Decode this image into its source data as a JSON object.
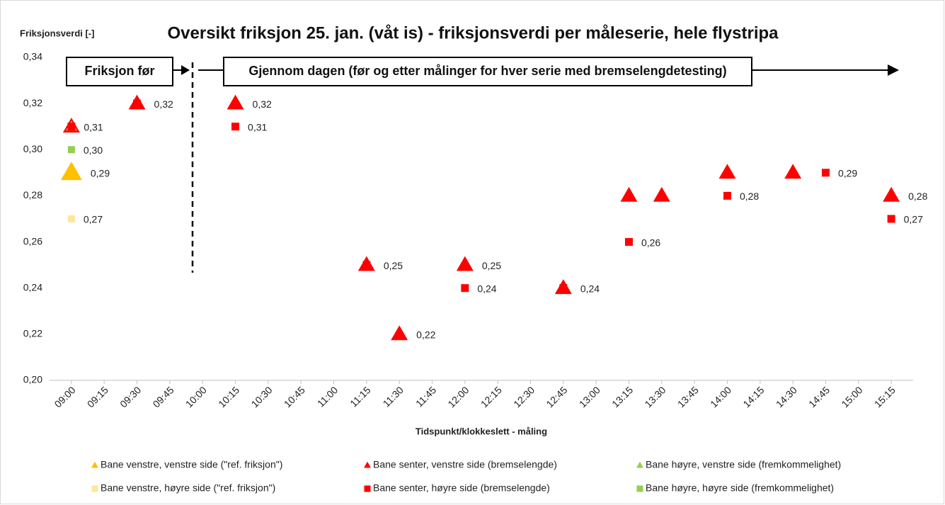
{
  "chart_data": {
    "type": "scatter",
    "title": "Oversikt friksjon 25. jan. (våt is) - friksjonsverdi per måleserie, hele flystripa",
    "y_label": "Friksjonsverdi [-]",
    "x_label": "Tidspunkt/klokkeslett - måling",
    "annotations": [
      "Friksjon før",
      "Gjennom dagen (før og etter målinger for hver serie med bremselengdetesting)"
    ],
    "xlim": [
      "08:50",
      "15:25"
    ],
    "xticks": [
      "09:00",
      "09:15",
      "09:30",
      "09:45",
      "10:00",
      "10:15",
      "10:30",
      "10:45",
      "11:00",
      "11:15",
      "11:30",
      "11:45",
      "12:00",
      "12:15",
      "12:30",
      "12:45",
      "13:00",
      "13:15",
      "13:30",
      "13:45",
      "14:00",
      "14:15",
      "14:30",
      "14:45",
      "15:00",
      "15:15"
    ],
    "ylim": [
      0.2,
      0.34
    ],
    "yticks": [
      {
        "value": 0.2,
        "label": "0,20"
      },
      {
        "value": 0.22,
        "label": "0,22"
      },
      {
        "value": 0.24,
        "label": "0,24"
      },
      {
        "value": 0.26,
        "label": "0,26"
      },
      {
        "value": 0.28,
        "label": "0,28"
      },
      {
        "value": 0.3,
        "label": "0,30"
      },
      {
        "value": 0.32,
        "label": "0,32"
      },
      {
        "value": 0.34,
        "label": "0,34"
      }
    ],
    "grid": false,
    "legend": "bottom",
    "series": [
      {
        "name": "Bane venstre, venstre side (\"ref. friksjon\")",
        "color": "#FFC000",
        "marker": "triangle",
        "size": 30,
        "x": [
          "09:00"
        ],
        "values": [
          0.29
        ],
        "value_labels": [
          "0,29"
        ]
      },
      {
        "name": "Bane senter, venstre side (bremselengde)",
        "color": "#FF0000",
        "marker": "triangle",
        "size": 24,
        "x": [
          "09:00",
          "09:30",
          "10:15",
          "11:15",
          "11:30",
          "12:00",
          "12:45",
          "13:15",
          "13:30",
          "14:00",
          "14:30",
          "15:15"
        ],
        "values": [
          0.31,
          0.32,
          0.32,
          0.25,
          0.22,
          0.25,
          0.24,
          0.28,
          0.28,
          0.29,
          0.29,
          0.28
        ],
        "value_labels": [
          null,
          "0,32",
          "0,32",
          "0,25",
          "0,22",
          "0,25",
          "0,24",
          null,
          null,
          null,
          null,
          "0,28"
        ]
      },
      {
        "name": "Bane høyre, venstre side (fremkommelighet)",
        "color": "#92D050",
        "marker": "triangle",
        "size": 16,
        "x": [
          "09:00"
        ],
        "values": [
          0.31
        ],
        "value_labels": [
          null
        ]
      },
      {
        "name": "Bane venstre, høyre side (\"ref. friksjon\")",
        "color": "#FFE699",
        "marker": "square",
        "size": 10,
        "x": [
          "09:00"
        ],
        "values": [
          0.27
        ],
        "value_labels": [
          "0,27"
        ]
      },
      {
        "name": "Bane senter, høyre side (bremselengde)",
        "color": "#FF0000",
        "marker": "square",
        "size": 11,
        "x": [
          "09:00",
          "09:30",
          "10:15",
          "11:15",
          "12:00",
          "12:45",
          "13:15",
          "14:00",
          "14:45",
          "15:15"
        ],
        "values": [
          0.31,
          0.32,
          0.31,
          0.25,
          0.24,
          0.24,
          0.26,
          0.28,
          0.29,
          0.27
        ],
        "value_labels": [
          "0,31",
          null,
          "0,31",
          null,
          "0,24",
          null,
          "0,26",
          "0,28",
          "0,29",
          "0,27"
        ]
      },
      {
        "name": "Bane høyre, høyre side (fremkommelighet)",
        "color": "#92D050",
        "marker": "square",
        "size": 10,
        "x": [
          "09:00"
        ],
        "values": [
          0.3
        ],
        "value_labels": [
          "0,30"
        ]
      }
    ]
  }
}
